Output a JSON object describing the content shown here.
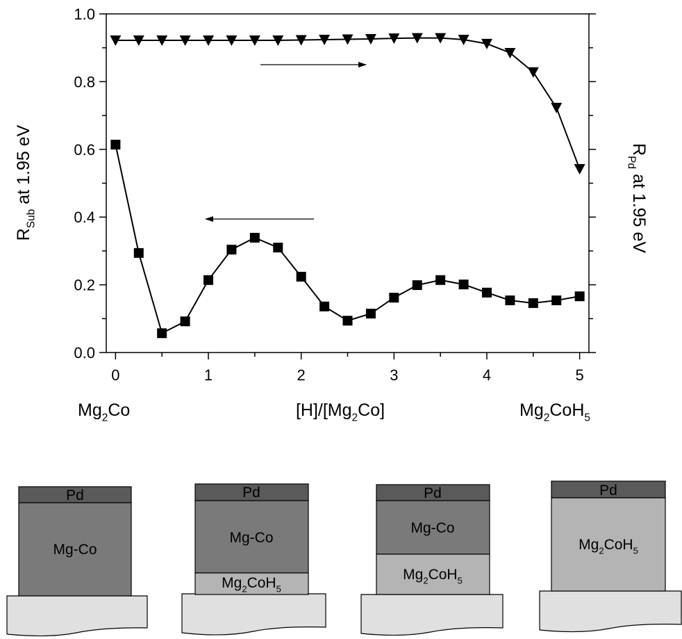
{
  "chart_data": {
    "type": "line",
    "ylabel": [
      "R",
      "Sub",
      " at 1.95 eV"
    ],
    "y2label": [
      "R",
      "Pd",
      " at 1.95 eV"
    ],
    "xlabel": [
      "[H]/[Mg",
      "2",
      "Co]"
    ],
    "xlabel_left": [
      "Mg",
      "2",
      "Co"
    ],
    "xlabel_right": [
      "Mg",
      "2",
      "CoH",
      "5"
    ],
    "x": [
      0,
      0.25,
      0.5,
      0.75,
      1,
      1.25,
      1.5,
      1.75,
      2,
      2.25,
      2.5,
      2.75,
      3,
      3.25,
      3.5,
      3.75,
      4,
      4.25,
      4.5,
      4.75,
      5
    ],
    "xlim": [
      -0.1,
      5.1
    ],
    "xticks": [
      0,
      1,
      2,
      3,
      4,
      5
    ],
    "ylim": [
      0,
      1
    ],
    "yticks": [
      {
        "value": 0,
        "label": "0.0"
      },
      {
        "value": 0.2,
        "label": "0.2"
      },
      {
        "value": 0.4,
        "label": "0.4"
      },
      {
        "value": 0.6,
        "label": "0.6"
      },
      {
        "value": 0.8,
        "label": "0.8"
      },
      {
        "value": 1,
        "label": "1.0"
      }
    ],
    "y2lim": [
      0,
      1
    ],
    "series": [
      {
        "marker": "triangle-down",
        "color": "#000000",
        "axis": "y2",
        "values": [
          0.922,
          0.922,
          0.922,
          0.922,
          0.922,
          0.922,
          0.922,
          0.922,
          0.923,
          0.924,
          0.925,
          0.926,
          0.928,
          0.929,
          0.929,
          0.924,
          0.912,
          0.885,
          0.828,
          0.723,
          0.542
        ]
      },
      {
        "marker": "square",
        "color": "#000000",
        "values": [
          0.614,
          0.294,
          0.057,
          0.092,
          0.214,
          0.304,
          0.339,
          0.31,
          0.224,
          0.136,
          0.094,
          0.115,
          0.162,
          0.199,
          0.214,
          0.201,
          0.177,
          0.154,
          0.146,
          0.154,
          0.166
        ]
      }
    ]
  },
  "diagram": {
    "panels": [
      {
        "layers": [
          [
            "Pd"
          ],
          [
            "Mg-Co"
          ]
        ]
      },
      {
        "layers": [
          [
            "Pd"
          ],
          [
            "Mg-Co"
          ],
          [
            "Mg",
            "2",
            "CoH",
            "5"
          ]
        ]
      },
      {
        "layers": [
          [
            "Pd"
          ],
          [
            "Mg-Co"
          ],
          [
            "Mg",
            "2",
            "CoH",
            "5"
          ]
        ]
      },
      {
        "layers": [
          [
            "Pd"
          ],
          [
            "Mg",
            "2",
            "CoH",
            "5"
          ]
        ]
      }
    ]
  }
}
